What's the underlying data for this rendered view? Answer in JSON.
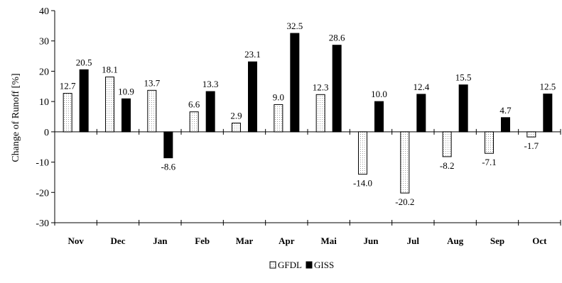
{
  "chart_data": {
    "type": "bar",
    "title": "",
    "xlabel": "",
    "ylabel": "Change of Runoff [%]",
    "ylim": [
      -30,
      40
    ],
    "yticks": [
      -30,
      -20,
      -10,
      0,
      10,
      20,
      30,
      40
    ],
    "grid": false,
    "legend_position": "bottom-center",
    "categories": [
      "Nov",
      "Dec",
      "Jan",
      "Feb",
      "Mar",
      "Apr",
      "Mai",
      "Jun",
      "Jul",
      "Aug",
      "Sep",
      "Oct"
    ],
    "series": [
      {
        "name": "GFDL",
        "fill": "#ffffff",
        "values": [
          12.7,
          18.1,
          13.7,
          6.6,
          2.9,
          9.0,
          12.3,
          -14.0,
          -20.2,
          -8.2,
          -7.1,
          -1.7
        ],
        "labels": [
          "12.7",
          "18.1",
          "13.7",
          "6.6",
          "2.9",
          "9.0",
          "12.3",
          "-14.0",
          "-20.2",
          "-8.2",
          "-7.1",
          "-1.7"
        ]
      },
      {
        "name": "GISS",
        "fill": "#000000",
        "values": [
          20.5,
          10.9,
          -8.6,
          13.3,
          23.1,
          32.5,
          28.6,
          10.0,
          12.4,
          15.5,
          4.7,
          12.5
        ],
        "labels": [
          "20.5",
          "10.9",
          "-8.6",
          "13.3",
          "23.1",
          "32.5",
          "28.6",
          "10.0",
          "12.4",
          "15.5",
          "4.7",
          "12.5"
        ]
      }
    ]
  }
}
